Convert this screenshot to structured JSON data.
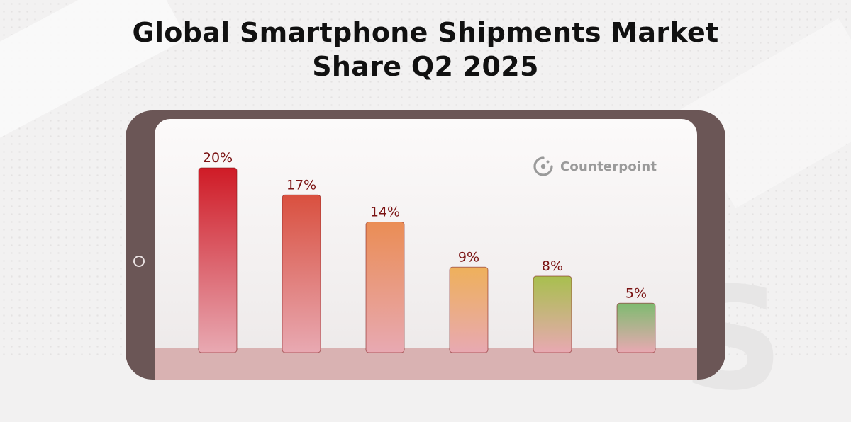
{
  "title_lines": [
    "Global Smartphone Shipments Market",
    "Share Q2 2025"
  ],
  "brand": {
    "name": "Counterpoint",
    "icon": "counterpoint-logo-icon"
  },
  "colors": {
    "tablet_frame": "#6b5656",
    "label_text": "#7a1212",
    "bar_colors": [
      "#cf1b26",
      "#d9503f",
      "#ea8d55",
      "#eeb05b",
      "#a8bf4e",
      "#7fbb70"
    ],
    "bar_fade": "#e8a9b2"
  },
  "chart_data": {
    "type": "bar",
    "title": "Global Smartphone Shipments Market Share Q2 2025",
    "categories": [
      "",
      "",
      "",
      "",
      "",
      ""
    ],
    "values": [
      20,
      17,
      14,
      9,
      8,
      5
    ],
    "data_labels": [
      "20%",
      "17%",
      "14%",
      "9%",
      "8%",
      "5%"
    ],
    "unit": "%",
    "ylim": [
      0,
      20
    ],
    "grid": false,
    "legend": "none"
  }
}
